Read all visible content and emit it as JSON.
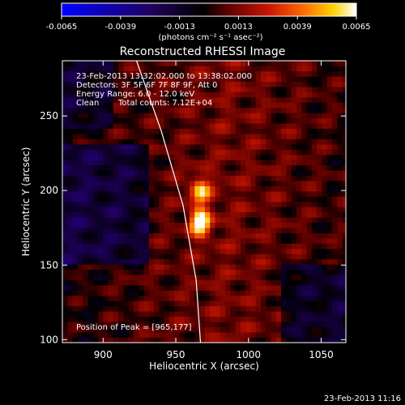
{
  "chart_data": {
    "type": "heatmap",
    "title": "Reconstructed RHESSI Image",
    "xlabel": "Heliocentric X (arcsec)",
    "ylabel": "Heliocentric Y (arcsec)",
    "xlim": [
      872,
      1067
    ],
    "ylim": [
      98,
      287
    ],
    "x_ticks": [
      900,
      950,
      1000,
      1050
    ],
    "y_ticks": [
      100,
      150,
      200,
      250
    ],
    "colorbar": {
      "min": -0.0065,
      "max": 0.0065,
      "ticks": [
        "-0.0065",
        "-0.0039",
        "-0.0013",
        "0.0013",
        "0.0039",
        "0.0065"
      ],
      "units_label": "(photons cm⁻² s⁻¹ asec⁻²)",
      "colormap": "blue-black-red-yellow-white"
    },
    "annotations": {
      "time_range": "23-Feb-2013 13:32:02.000 to 13:38:02.000",
      "detectors": "Detectors: 3F 5F 6F 7F 8F 9F, Att 0",
      "energy": "Energy Range: 6.0 - 12.0 keV",
      "clean_label": "Clean",
      "total_counts": "Total counts: 7.12E+04",
      "peak": "Position of Peak = [965,177]"
    },
    "peak_position": [
      965,
      177
    ],
    "sources": [
      {
        "x": 965,
        "y": 177,
        "intensity": 0.0065
      },
      {
        "x": 965,
        "y": 198,
        "intensity": 0.0045
      }
    ],
    "limb_curve": [
      [
        923,
        287
      ],
      [
        940,
        240
      ],
      [
        955,
        190
      ],
      [
        964,
        140
      ],
      [
        967,
        98
      ]
    ],
    "colors": {
      "limb": "#ffffff",
      "background": "#000000"
    }
  },
  "footer": {
    "timestamp": "23-Feb-2013 11:16"
  }
}
